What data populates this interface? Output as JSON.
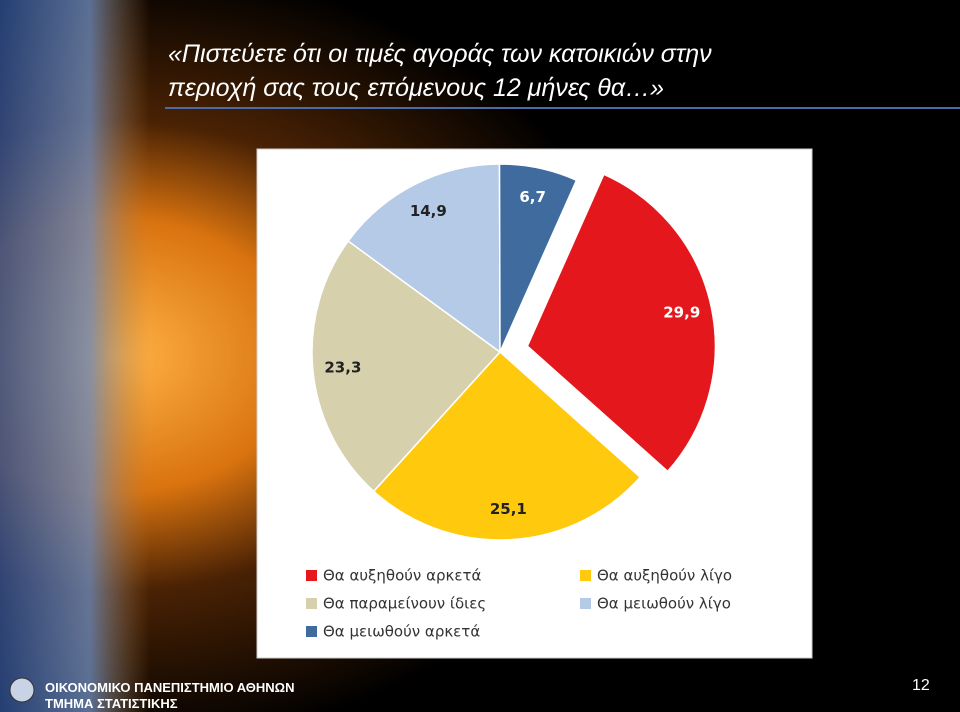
{
  "chart_data": {
    "type": "pie",
    "title": [
      "«Πιστεύετε ότι οι τιμές αγοράς των κατοικιών στην",
      "περιοχή σας τους επόμενους 12 μήνες θα…»"
    ],
    "categories": [
      "Θα αυξηθούν αρκετά",
      "Θα αυξηθούν λίγο",
      "Θα παραμείνουν ίδιες",
      "Θα μειωθούν λίγο",
      "Θα μειωθούν αρκετά"
    ],
    "values": [
      29.9,
      25.1,
      23.3,
      14.9,
      6.7
    ],
    "value_labels": [
      "29,9",
      "25,1",
      "23,3",
      "14,9",
      "6,7"
    ],
    "colors": [
      "#e3171c",
      "#ffc90e",
      "#d6d0ad",
      "#b5cae6",
      "#3f6b9f"
    ],
    "legend": "bottom"
  },
  "footer": {
    "institution": "ΟΙΚΟΝΟΜΙΚΟ ΠΑΝΕΠΙΣΤΗΜΙΟ ΑΘΗΝΩΝ",
    "department": "ΤΜΗΜΑ ΣΤΑΤΙΣΤΙΚΗΣ",
    "page_number": "12"
  }
}
